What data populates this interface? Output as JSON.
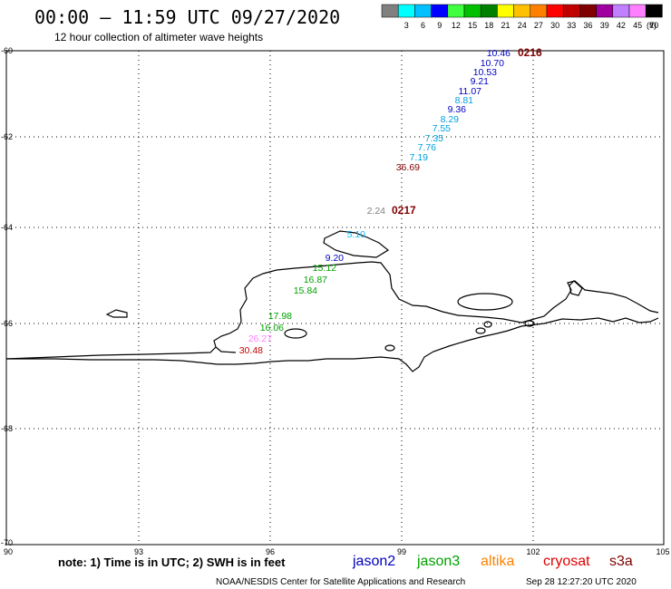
{
  "header": {
    "title": "00:00 — 11:59 UTC 09/27/2020",
    "subtitle": "12 hour collection of altimeter wave heights"
  },
  "colorbar": {
    "unit": "(ft)",
    "bins": [
      {
        "label": "",
        "color": "#808080"
      },
      {
        "label": "3",
        "color": "#00ffff"
      },
      {
        "label": "6",
        "color": "#00c0ff"
      },
      {
        "label": "9",
        "color": "#0000ff"
      },
      {
        "label": "12",
        "color": "#40ff40"
      },
      {
        "label": "15",
        "color": "#00c000"
      },
      {
        "label": "18",
        "color": "#008000"
      },
      {
        "label": "21",
        "color": "#ffff00"
      },
      {
        "label": "24",
        "color": "#ffc000"
      },
      {
        "label": "27",
        "color": "#ff8000"
      },
      {
        "label": "30",
        "color": "#ff0000"
      },
      {
        "label": "33",
        "color": "#c00000"
      },
      {
        "label": "36",
        "color": "#800000"
      },
      {
        "label": "39",
        "color": "#a000a0"
      },
      {
        "label": "42",
        "color": "#c080ff"
      },
      {
        "label": "45",
        "color": "#ff80ff"
      },
      {
        "label": "70",
        "color": "#000000"
      }
    ]
  },
  "axes": {
    "lat_labels": [
      "-60",
      "-62",
      "-64",
      "-66",
      "-68",
      "-70"
    ],
    "lon_labels": [
      "90",
      "93",
      "96",
      "99",
      "102",
      "105"
    ]
  },
  "time_labels": [
    {
      "text": "0216",
      "color": "#800000"
    },
    {
      "text": "0217",
      "color": "#800000"
    }
  ],
  "observations": [
    {
      "text": "10.46",
      "color": "#0000c0"
    },
    {
      "text": "10.70",
      "color": "#0000c0"
    },
    {
      "text": "10.53",
      "color": "#0000c0"
    },
    {
      "text": "9.21",
      "color": "#0000c0"
    },
    {
      "text": "11.07",
      "color": "#0000c0"
    },
    {
      "text": "8.81",
      "color": "#00a0e0"
    },
    {
      "text": "9.36",
      "color": "#0000c0"
    },
    {
      "text": "8.29",
      "color": "#00a0e0"
    },
    {
      "text": "7.55",
      "color": "#00a0e0"
    },
    {
      "text": "7.35",
      "color": "#00a0e0"
    },
    {
      "text": "7.76",
      "color": "#00a0e0"
    },
    {
      "text": "7.19",
      "color": "#00a0e0"
    },
    {
      "text": "36.69",
      "color": "#800000"
    },
    {
      "text": "2.24",
      "color": "#808080"
    },
    {
      "text": "5.10",
      "color": "#00c0ff"
    },
    {
      "text": "9.20",
      "color": "#0000c0"
    },
    {
      "text": "15.12",
      "color": "#00a000"
    },
    {
      "text": "16.87",
      "color": "#00a000"
    },
    {
      "text": "15.84",
      "color": "#00a000"
    },
    {
      "text": "17.98",
      "color": "#00a000"
    },
    {
      "text": "16.06",
      "color": "#00a000"
    },
    {
      "text": "26.27",
      "color": "#ff80ff"
    },
    {
      "text": "30.48",
      "color": "#c00000"
    }
  ],
  "footer": {
    "note": "note: 1) Time is in UTC; 2) SWH is in feet",
    "satellites": [
      {
        "name": "jason2",
        "color": "#0000c0"
      },
      {
        "name": "jason3",
        "color": "#00a000"
      },
      {
        "name": "altika",
        "color": "#ff8000"
      },
      {
        "name": "cryosat",
        "color": "#e00000"
      },
      {
        "name": "s3a",
        "color": "#800000"
      }
    ],
    "credit": "NOAA/NESDIS Center for Satellite Applications and Research",
    "timestamp": "Sep 28 12:27:20 UTC 2020"
  }
}
